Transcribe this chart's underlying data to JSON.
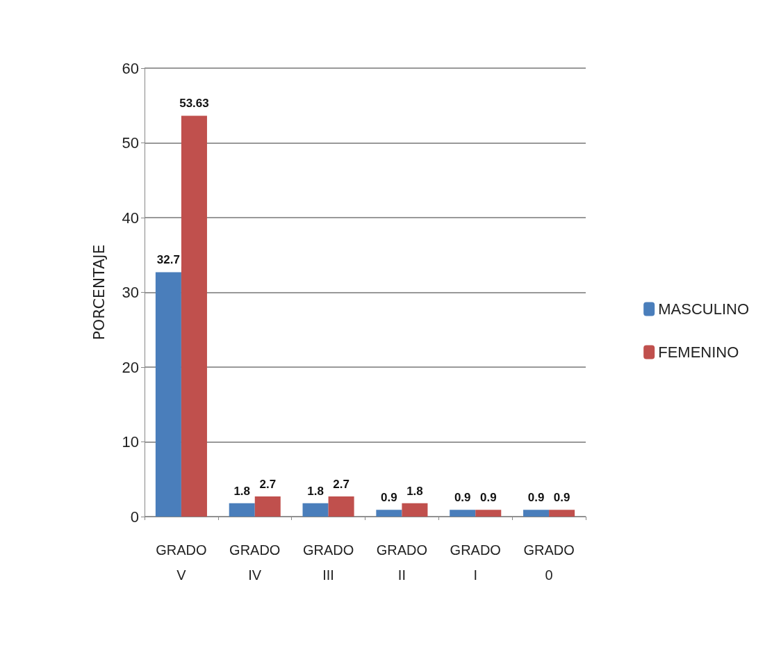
{
  "chart_data": {
    "type": "bar",
    "ylabel": "PORCENTAJE",
    "categories": [
      "GRADO V",
      "GRADO IV",
      "GRADO III",
      "GRADO II",
      "GRADO I",
      "GRADO 0"
    ],
    "series": [
      {
        "name": "MASCULINO",
        "color": "#4a7ebb",
        "values": [
          32.7,
          1.8,
          1.8,
          0.9,
          0.9,
          0.9
        ]
      },
      {
        "name": "FEMENINO",
        "color": "#c0504d",
        "values": [
          53.63,
          2.7,
          2.7,
          1.8,
          0.9,
          0.9
        ]
      }
    ],
    "ylim": [
      0,
      60
    ],
    "yticks": [
      0,
      10,
      20,
      30,
      40,
      50,
      60
    ],
    "grid": "y",
    "legend": "right",
    "data_labels": true
  }
}
